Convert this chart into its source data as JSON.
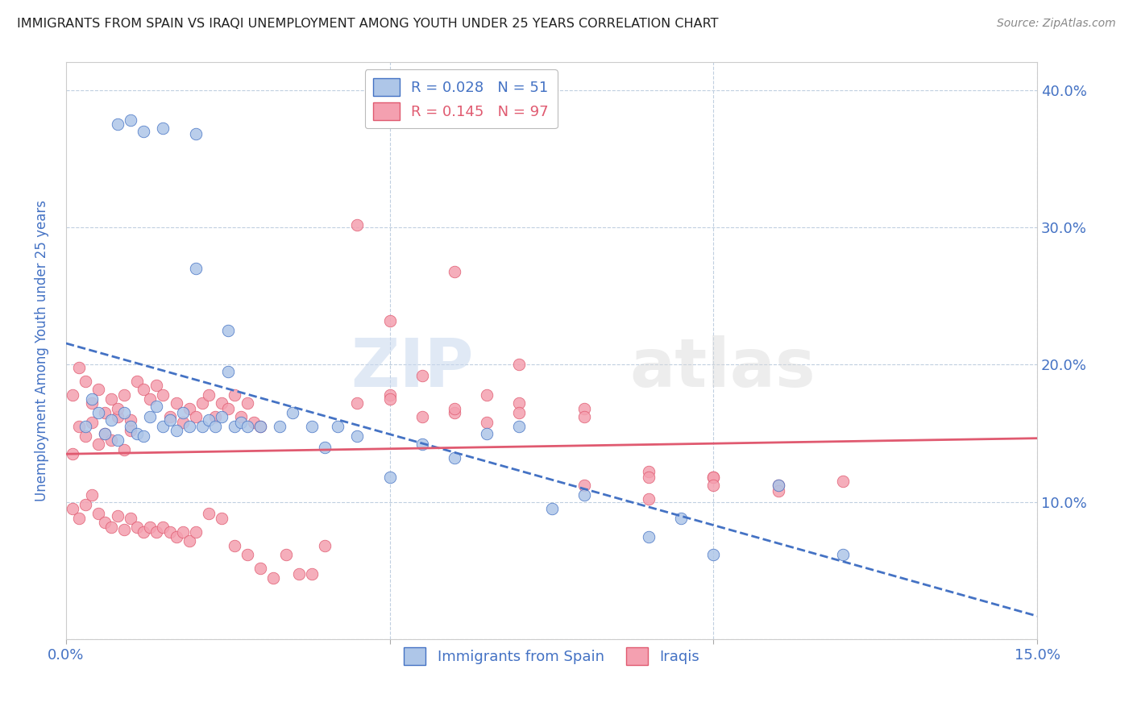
{
  "title": "IMMIGRANTS FROM SPAIN VS IRAQI UNEMPLOYMENT AMONG YOUTH UNDER 25 YEARS CORRELATION CHART",
  "source": "Source: ZipAtlas.com",
  "ylabel_text": "Unemployment Among Youth under 25 years",
  "x_min": 0.0,
  "x_max": 0.15,
  "y_min": 0.0,
  "y_max": 0.42,
  "x_ticks": [
    0.0,
    0.05,
    0.1,
    0.15
  ],
  "y_ticks": [
    0.0,
    0.1,
    0.2,
    0.3,
    0.4
  ],
  "legend_r1": "R = 0.028",
  "legend_n1": "N = 51",
  "legend_r2": "R = 0.145",
  "legend_n2": "N = 97",
  "color_spain": "#aec6e8",
  "color_iraq": "#f4a0b0",
  "color_text_blue": "#4472c4",
  "color_trendline_spain": "#4472c4",
  "color_trendline_iraq": "#e05a70",
  "watermark_text": "ZIPatlas",
  "spain_x": [
    0.003,
    0.004,
    0.005,
    0.006,
    0.007,
    0.008,
    0.009,
    0.01,
    0.011,
    0.012,
    0.013,
    0.014,
    0.015,
    0.016,
    0.017,
    0.018,
    0.019,
    0.02,
    0.021,
    0.022,
    0.023,
    0.024,
    0.025,
    0.026,
    0.027,
    0.028,
    0.03,
    0.033,
    0.035,
    0.038,
    0.04,
    0.042,
    0.045,
    0.05,
    0.055,
    0.06,
    0.065,
    0.07,
    0.075,
    0.08,
    0.09,
    0.095,
    0.1,
    0.11,
    0.12,
    0.008,
    0.01,
    0.012,
    0.015,
    0.02,
    0.025
  ],
  "spain_y": [
    0.155,
    0.175,
    0.165,
    0.15,
    0.16,
    0.145,
    0.165,
    0.155,
    0.15,
    0.148,
    0.162,
    0.17,
    0.155,
    0.16,
    0.152,
    0.165,
    0.155,
    0.27,
    0.155,
    0.16,
    0.155,
    0.162,
    0.195,
    0.155,
    0.158,
    0.155,
    0.155,
    0.155,
    0.165,
    0.155,
    0.14,
    0.155,
    0.148,
    0.118,
    0.142,
    0.132,
    0.15,
    0.155,
    0.095,
    0.105,
    0.075,
    0.088,
    0.062,
    0.112,
    0.062,
    0.375,
    0.378,
    0.37,
    0.372,
    0.368,
    0.225
  ],
  "iraq_x": [
    0.001,
    0.002,
    0.003,
    0.004,
    0.005,
    0.006,
    0.007,
    0.008,
    0.009,
    0.01,
    0.001,
    0.002,
    0.003,
    0.004,
    0.005,
    0.006,
    0.007,
    0.008,
    0.009,
    0.01,
    0.001,
    0.002,
    0.003,
    0.004,
    0.005,
    0.006,
    0.007,
    0.008,
    0.009,
    0.01,
    0.011,
    0.012,
    0.013,
    0.014,
    0.015,
    0.016,
    0.017,
    0.018,
    0.019,
    0.02,
    0.011,
    0.012,
    0.013,
    0.014,
    0.015,
    0.016,
    0.017,
    0.018,
    0.019,
    0.02,
    0.021,
    0.022,
    0.023,
    0.024,
    0.025,
    0.026,
    0.027,
    0.028,
    0.029,
    0.03,
    0.022,
    0.024,
    0.026,
    0.028,
    0.03,
    0.032,
    0.034,
    0.036,
    0.038,
    0.04,
    0.045,
    0.05,
    0.055,
    0.06,
    0.065,
    0.07,
    0.08,
    0.09,
    0.1,
    0.11,
    0.045,
    0.05,
    0.055,
    0.06,
    0.065,
    0.07,
    0.08,
    0.09,
    0.1,
    0.05,
    0.06,
    0.07,
    0.08,
    0.09,
    0.1,
    0.11,
    0.12
  ],
  "iraq_y": [
    0.135,
    0.155,
    0.148,
    0.158,
    0.142,
    0.15,
    0.145,
    0.162,
    0.138,
    0.152,
    0.095,
    0.088,
    0.098,
    0.105,
    0.092,
    0.085,
    0.082,
    0.09,
    0.08,
    0.088,
    0.178,
    0.198,
    0.188,
    0.172,
    0.182,
    0.165,
    0.175,
    0.168,
    0.178,
    0.16,
    0.188,
    0.182,
    0.175,
    0.185,
    0.178,
    0.162,
    0.172,
    0.158,
    0.168,
    0.162,
    0.082,
    0.078,
    0.082,
    0.078,
    0.082,
    0.078,
    0.075,
    0.078,
    0.072,
    0.078,
    0.172,
    0.178,
    0.162,
    0.172,
    0.168,
    0.178,
    0.162,
    0.172,
    0.158,
    0.155,
    0.092,
    0.088,
    0.068,
    0.062,
    0.052,
    0.045,
    0.062,
    0.048,
    0.048,
    0.068,
    0.172,
    0.178,
    0.162,
    0.165,
    0.158,
    0.2,
    0.112,
    0.102,
    0.118,
    0.112,
    0.302,
    0.232,
    0.192,
    0.268,
    0.178,
    0.172,
    0.168,
    0.122,
    0.118,
    0.175,
    0.168,
    0.165,
    0.162,
    0.118,
    0.112,
    0.108,
    0.115
  ]
}
